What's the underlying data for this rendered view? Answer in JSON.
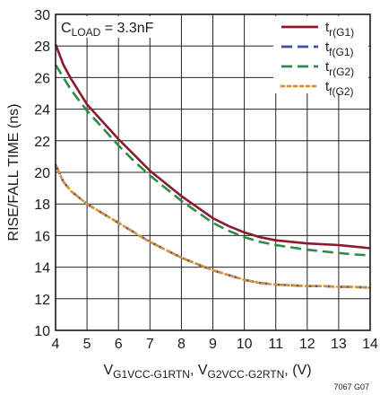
{
  "chart_data": {
    "type": "line",
    "xlabel": "",
    "ylabel": "RISE/FALL TIME (ns)",
    "xlim": [
      4,
      14
    ],
    "ylim": [
      10,
      30
    ],
    "x_ticks": [
      4,
      5,
      6,
      7,
      8,
      9,
      10,
      11,
      12,
      13,
      14
    ],
    "y_ticks": [
      10,
      12,
      14,
      16,
      18,
      20,
      22,
      24,
      26,
      28,
      30
    ],
    "grid": true,
    "legend_position": "top-right",
    "annotation": {
      "main": "C",
      "sub": "LOAD",
      "tail": " = 3.3nF"
    },
    "xlabel_parts": [
      {
        "t": "V",
        "sub": false
      },
      {
        "t": "G1VCC-G1RTN",
        "sub": true
      },
      {
        "t": ", V",
        "sub": false
      },
      {
        "t": "G2VCC-G2RTN",
        "sub": true
      },
      {
        "t": ", (V)",
        "sub": false
      }
    ],
    "figure_id": "7067 G07",
    "series": [
      {
        "main": "t",
        "sub": "r(G1)",
        "color": "#8b1a2e",
        "style": "solid",
        "x": [
          4,
          4.25,
          4.5,
          5,
          5.5,
          6,
          6.5,
          7,
          7.5,
          8,
          8.5,
          9,
          9.5,
          10,
          10.5,
          11,
          11.5,
          12,
          12.5,
          13,
          13.5,
          14
        ],
        "y": [
          28.1,
          26.8,
          25.9,
          24.3,
          23.2,
          22.1,
          21.1,
          20.1,
          19.3,
          18.5,
          17.8,
          17.1,
          16.6,
          16.2,
          15.9,
          15.7,
          15.6,
          15.5,
          15.45,
          15.4,
          15.3,
          15.2
        ]
      },
      {
        "main": "t",
        "sub": "f(G1)",
        "color": "#3b4fa8",
        "style": "dash",
        "x": [
          4,
          4.25,
          4.5,
          5,
          5.5,
          6,
          6.5,
          7,
          7.5,
          8,
          8.5,
          9,
          9.5,
          10,
          10.5,
          11,
          11.5,
          12,
          12.5,
          13,
          13.5,
          14
        ],
        "y": [
          20.5,
          19.4,
          18.8,
          18.0,
          17.4,
          16.8,
          16.2,
          15.6,
          15.1,
          14.6,
          14.2,
          13.8,
          13.5,
          13.2,
          13.0,
          12.9,
          12.85,
          12.8,
          12.8,
          12.75,
          12.75,
          12.7
        ]
      },
      {
        "main": "t",
        "sub": "r(G2)",
        "color": "#2e8b45",
        "style": "dash",
        "x": [
          4,
          4.25,
          4.5,
          5,
          5.5,
          6,
          6.5,
          7,
          7.5,
          8,
          8.5,
          9,
          9.5,
          10,
          10.5,
          11,
          11.5,
          12,
          12.5,
          13,
          13.5,
          14
        ],
        "y": [
          26.8,
          26.0,
          25.2,
          23.9,
          22.8,
          21.7,
          20.7,
          19.8,
          19.0,
          18.2,
          17.5,
          16.8,
          16.3,
          15.9,
          15.6,
          15.4,
          15.25,
          15.1,
          15.0,
          14.9,
          14.8,
          14.75
        ]
      },
      {
        "main": "t",
        "sub": "f(G2)",
        "color": "#d9922e",
        "style": "dot",
        "x": [
          4,
          4.25,
          4.5,
          5,
          5.5,
          6,
          6.5,
          7,
          7.5,
          8,
          8.5,
          9,
          9.5,
          10,
          10.5,
          11,
          11.5,
          12,
          12.5,
          13,
          13.5,
          14
        ],
        "y": [
          20.5,
          19.4,
          18.8,
          18.0,
          17.4,
          16.8,
          16.2,
          15.6,
          15.1,
          14.6,
          14.2,
          13.8,
          13.5,
          13.2,
          13.0,
          12.9,
          12.85,
          12.8,
          12.8,
          12.75,
          12.75,
          12.7
        ]
      }
    ]
  }
}
